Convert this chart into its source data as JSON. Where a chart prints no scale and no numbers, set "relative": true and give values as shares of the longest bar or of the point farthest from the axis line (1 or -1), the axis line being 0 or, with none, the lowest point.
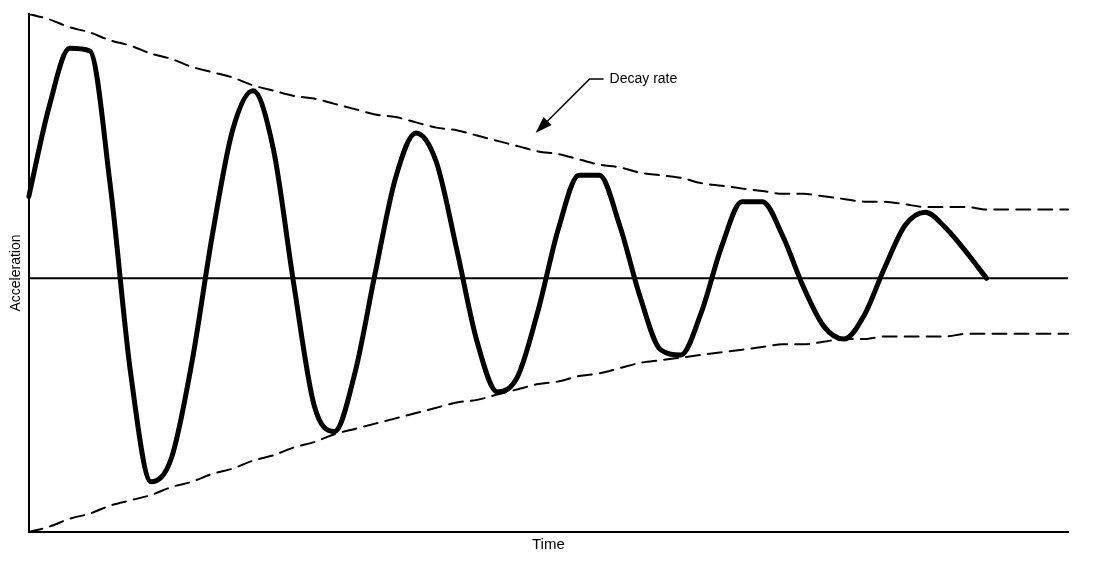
{
  "chart_data": {
    "type": "line",
    "relative": true,
    "xlabel": "Time",
    "ylabel": "Acceleration",
    "legend": false,
    "grid": false,
    "marker": "none",
    "categories": [
      null,
      null,
      null,
      null,
      null,
      null,
      null,
      null,
      null,
      null,
      null,
      null,
      null,
      null,
      null,
      null,
      null,
      null,
      null,
      null,
      null,
      null,
      null,
      null,
      null,
      null,
      null,
      null,
      null,
      null,
      null,
      null,
      null,
      null,
      null,
      null,
      null,
      null,
      null,
      null,
      null,
      null,
      null,
      null,
      null,
      null,
      null,
      null,
      null,
      null,
      null,
      null
    ],
    "series": [
      {
        "color": "#000000",
        "line_style": "solid",
        "values": [
          0.31,
          0.65,
          0.87,
          0.86,
          0.35,
          -0.36,
          -0.77,
          -0.68,
          -0.32,
          0.16,
          0.56,
          0.71,
          0.49,
          -0.02,
          -0.48,
          -0.58,
          -0.36,
          0.02,
          0.38,
          0.55,
          0.44,
          0.11,
          -0.24,
          -0.43,
          -0.37,
          -0.12,
          0.19,
          0.39,
          0.39,
          0.2,
          -0.07,
          -0.27,
          -0.29,
          -0.13,
          0.12,
          0.29,
          0.29,
          0.16,
          -0.03,
          -0.18,
          -0.23,
          -0.14,
          0.04,
          0.2,
          0.25,
          0.19,
          0.1,
          0.0,
          null,
          null,
          null,
          null
        ]
      },
      {
        "color": "#000000",
        "line_style": "dashed",
        "values": [
          1.0,
          0.98,
          0.95,
          0.93,
          0.9,
          0.88,
          0.85,
          0.83,
          0.8,
          0.78,
          0.76,
          0.73,
          0.71,
          0.69,
          0.68,
          0.66,
          0.64,
          0.62,
          0.61,
          0.59,
          0.57,
          0.56,
          0.54,
          0.52,
          0.5,
          0.48,
          0.47,
          0.45,
          0.43,
          0.42,
          0.4,
          0.39,
          0.38,
          0.36,
          0.35,
          0.34,
          0.33,
          0.32,
          0.32,
          0.31,
          0.3,
          0.29,
          0.29,
          0.28,
          0.27,
          0.27,
          0.27,
          0.26,
          0.26,
          0.26,
          0.26,
          0.26
        ]
      },
      {
        "color": "#000000",
        "line_style": "dashed",
        "values": [
          -0.96,
          -0.94,
          -0.91,
          -0.89,
          -0.86,
          -0.84,
          -0.82,
          -0.79,
          -0.77,
          -0.74,
          -0.72,
          -0.69,
          -0.67,
          -0.64,
          -0.62,
          -0.59,
          -0.57,
          -0.55,
          -0.53,
          -0.51,
          -0.49,
          -0.47,
          -0.46,
          -0.44,
          -0.42,
          -0.4,
          -0.39,
          -0.37,
          -0.36,
          -0.34,
          -0.32,
          -0.31,
          -0.3,
          -0.29,
          -0.28,
          -0.27,
          -0.26,
          -0.25,
          -0.25,
          -0.24,
          -0.23,
          -0.23,
          -0.22,
          -0.22,
          -0.22,
          -0.22,
          -0.21,
          -0.21,
          -0.21,
          -0.21,
          -0.21,
          -0.21
        ]
      }
    ],
    "annotations": [
      "Decay rate"
    ]
  }
}
